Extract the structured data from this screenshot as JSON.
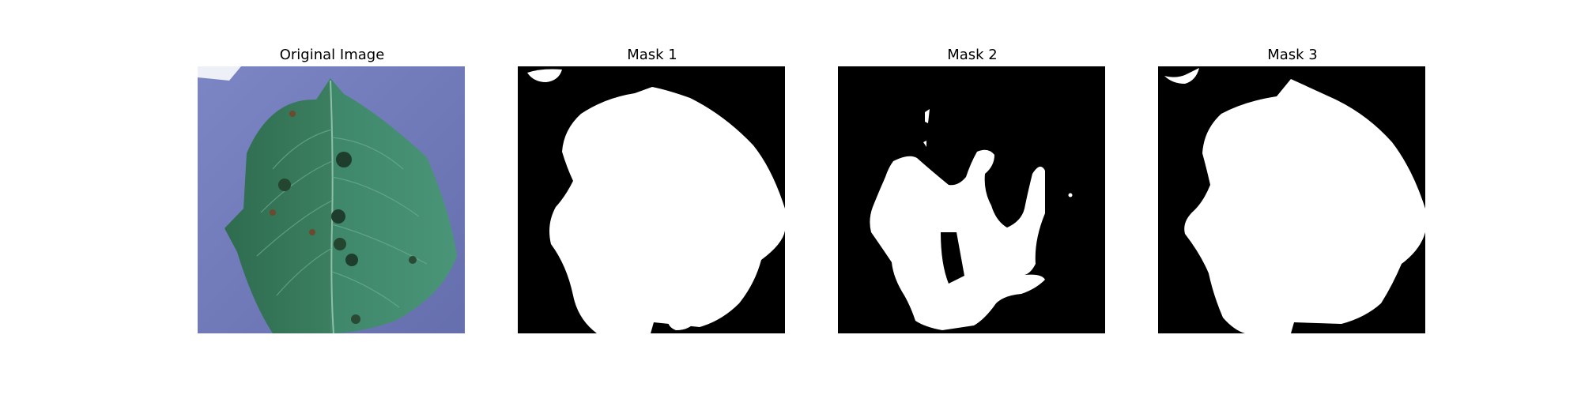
{
  "panels": [
    {
      "title": "Original Image",
      "kind": "photo"
    },
    {
      "title": "Mask 1",
      "kind": "mask"
    },
    {
      "title": "Mask 2",
      "kind": "mask"
    },
    {
      "title": "Mask 3",
      "kind": "mask"
    }
  ],
  "colors": {
    "background": "#ffffff",
    "photo_background": "#6f78b5",
    "leaf_dark": "#2e6b4e",
    "leaf_light": "#3f8a6a",
    "spot": "#1f3d2c",
    "mask_black": "#000000",
    "mask_white": "#ffffff"
  }
}
